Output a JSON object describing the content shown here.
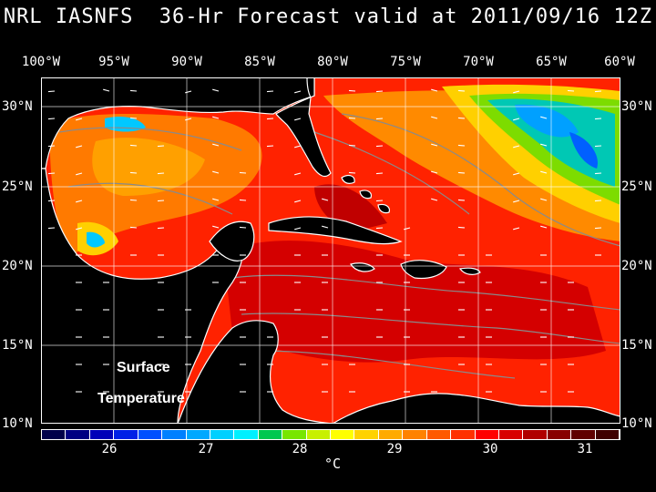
{
  "title": "NRL IASNFS  36-Hr Forecast valid at 2011/09/16 12Z",
  "lon_labels": [
    "100°W",
    "95°W",
    "90°W",
    "85°W",
    "80°W",
    "75°W",
    "70°W",
    "65°W",
    "60°W"
  ],
  "lat_labels": [
    "30°N",
    "25°N",
    "20°N",
    "15°N",
    "10°N"
  ],
  "map_text": {
    "line1": "Surface",
    "line2": "Temperature"
  },
  "colorbar": {
    "ticks": [
      "26",
      "27",
      "28",
      "29",
      "30",
      "31"
    ],
    "unit": "°C",
    "colors": [
      "#00004a",
      "#000082",
      "#0000b8",
      "#0020e6",
      "#0050ff",
      "#0080ff",
      "#00a8ff",
      "#00d0ff",
      "#00f0ff",
      "#00c850",
      "#78e600",
      "#c8f000",
      "#ffff00",
      "#ffd200",
      "#ffaa00",
      "#ff8200",
      "#ff5a00",
      "#ff3000",
      "#ff0000",
      "#d80000",
      "#b00000",
      "#880000",
      "#600000",
      "#400000"
    ]
  },
  "map_colors": {
    "land": "#000000",
    "coast": "#ffffff",
    "grid": "#ffffff",
    "contour": "#8a8a8a",
    "sea_warm": "#ff2200",
    "sea_hot": "#cc0000",
    "sea_orange": "#ff7a00",
    "sea_yellow": "#ffd000",
    "sea_green": "#7ddc00",
    "sea_cyan": "#00c8ff"
  }
}
